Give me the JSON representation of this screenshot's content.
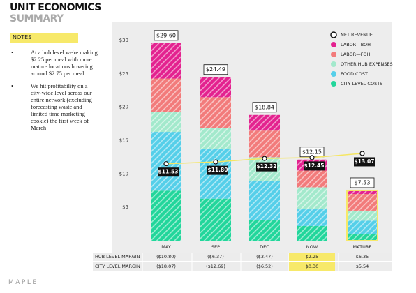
{
  "header": {
    "title": "UNIT ECONOMICS",
    "subtitle": "SUMMARY"
  },
  "notes": {
    "title": "NOTES",
    "items": [
      "At a hub level we're making $2.25 per meal with more mature locations hovering around $2.75 per meal",
      "We hit profitability on a city-wide level across our entire network (excluding forecasting waste and limited time marketing cookie) the first week of March"
    ]
  },
  "chart_data": {
    "type": "stacked_bar_line",
    "categories": [
      "MAY",
      "SEP",
      "DEC",
      "NOW",
      "MATURE"
    ],
    "ylim": [
      0,
      30
    ],
    "yticks": [
      {
        "value": 5,
        "label": "$5"
      },
      {
        "value": 10,
        "label": "$10"
      },
      {
        "value": 15,
        "label": "$15"
      },
      {
        "value": 20,
        "label": "$20"
      },
      {
        "value": 25,
        "label": "$25"
      },
      {
        "value": 30,
        "label": "$30"
      }
    ],
    "totals": [
      29.6,
      24.49,
      18.84,
      12.15,
      7.53
    ],
    "total_labels": [
      "$29.60",
      "$24.49",
      "$18.84",
      "$12.15",
      "$7.53"
    ],
    "series": [
      {
        "name": "NET REVENUE",
        "type": "line",
        "color": "#f5e663",
        "values": [
          11.53,
          11.8,
          12.32,
          12.45,
          13.07
        ],
        "value_labels": [
          "$11.53",
          "$11.80",
          "$12.32",
          "$12.45",
          "$13.07"
        ]
      },
      {
        "name": "LABOR—BOH",
        "type": "bar",
        "color": "#e3228f",
        "values": [
          5.3,
          2.99,
          2.34,
          1.65,
          0.53
        ]
      },
      {
        "name": "LABOR—FOH",
        "type": "bar",
        "color": "#f27b7b",
        "values": [
          5.0,
          4.6,
          4.0,
          2.5,
          2.5
        ]
      },
      {
        "name": "OTHER HUB EXPENSES",
        "type": "bar",
        "color": "#a3e9cc",
        "values": [
          3.0,
          3.1,
          3.6,
          3.3,
          1.5
        ]
      },
      {
        "name": "FOOD COST",
        "type": "bar",
        "color": "#55cfe9",
        "values": [
          8.8,
          7.5,
          5.8,
          2.5,
          2.0
        ]
      },
      {
        "name": "CITY LEVEL COSTS",
        "type": "bar",
        "color": "#22d69b",
        "values": [
          7.5,
          6.3,
          3.1,
          2.2,
          1.0
        ]
      }
    ],
    "highlight_color": "#f7e96a"
  },
  "table": {
    "rows": [
      {
        "label": "HUB LEVEL MARGIN",
        "cells": [
          "($10.80)",
          "($6.37)",
          "($3.47)",
          "$2.25",
          "$6.35"
        ]
      },
      {
        "label": "CITY LEVEL MARGIN",
        "cells": [
          "($18.07)",
          "($12.69)",
          "($6.52)",
          "$0.30",
          "$5.54"
        ]
      }
    ]
  },
  "footer": "MAPLE"
}
